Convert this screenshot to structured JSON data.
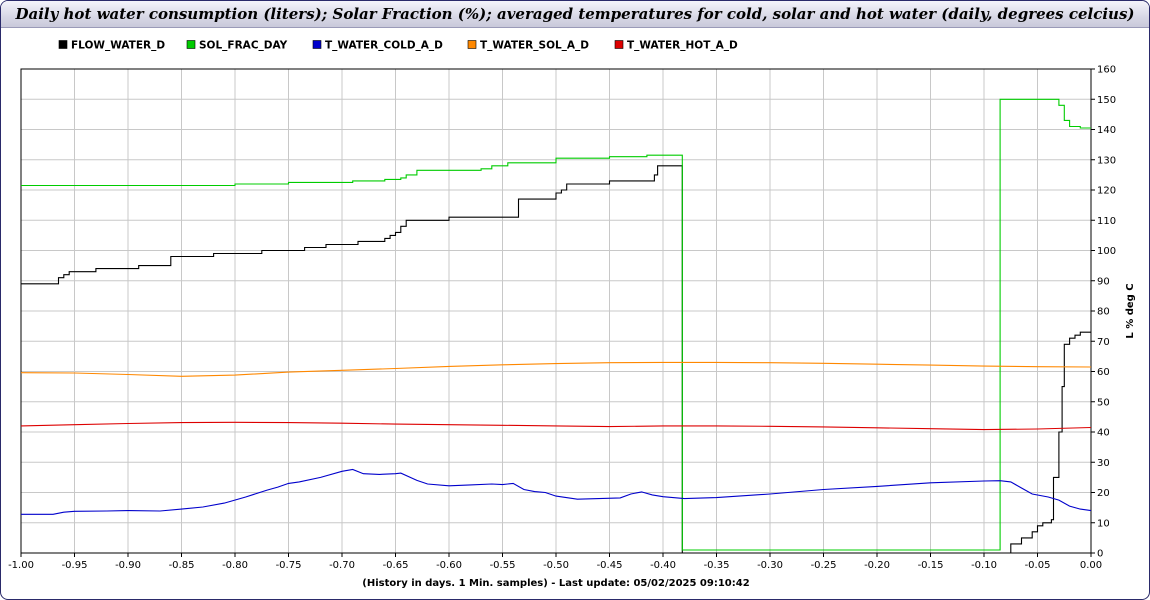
{
  "window": {
    "title": "Daily hot water consumption (liters); Solar Fraction (%); averaged temperatures for cold, solar and hot water (daily, degrees celcius)"
  },
  "chart_data": {
    "type": "line",
    "title": "Daily hot water consumption (liters); Solar Fraction (%); averaged temperatures for cold, solar and hot water (daily, degrees celcius)",
    "xlabel": "(History in days. 1 Min. samples) - Last update: 05/02/2025 09:10:42",
    "ylabel": "L % deg C",
    "xlim": [
      -1.0,
      0.0
    ],
    "ylim": [
      0,
      160
    ],
    "x_ticks": [
      -1.0,
      -0.95,
      -0.9,
      -0.85,
      -0.8,
      -0.75,
      -0.7,
      -0.65,
      -0.6,
      -0.55,
      -0.5,
      -0.45,
      -0.4,
      -0.35,
      -0.3,
      -0.25,
      -0.2,
      -0.15,
      -0.1,
      -0.05,
      0.0
    ],
    "x_tick_labels": [
      "-1.00",
      "-0.95",
      "-0.90",
      "-0.85",
      "-0.80",
      "-0.75",
      "-0.70",
      "-0.65",
      "-0.60",
      "-0.55",
      "-0.50",
      "-0.45",
      "-0.40",
      "-0.35",
      "-0.30",
      "-0.25",
      "-0.20",
      "-0.15",
      "-0.10",
      "-0.05",
      "0.00"
    ],
    "y_ticks": [
      0,
      10,
      20,
      30,
      40,
      50,
      60,
      70,
      80,
      90,
      100,
      110,
      120,
      130,
      140,
      150,
      160
    ],
    "y_axis_side": "right",
    "grid": true,
    "legend_position": "top-left",
    "series": [
      {
        "name": "FLOW_WATER_D",
        "color": "#000000",
        "step": true,
        "points": [
          [
            -1.0,
            89
          ],
          [
            -0.97,
            89
          ],
          [
            -0.965,
            91
          ],
          [
            -0.96,
            92
          ],
          [
            -0.955,
            93
          ],
          [
            -0.935,
            93
          ],
          [
            -0.93,
            94
          ],
          [
            -0.9,
            94
          ],
          [
            -0.89,
            95
          ],
          [
            -0.865,
            95
          ],
          [
            -0.86,
            98
          ],
          [
            -0.825,
            98
          ],
          [
            -0.82,
            99
          ],
          [
            -0.78,
            99
          ],
          [
            -0.775,
            100
          ],
          [
            -0.74,
            100
          ],
          [
            -0.735,
            101
          ],
          [
            -0.72,
            101
          ],
          [
            -0.715,
            102
          ],
          [
            -0.69,
            102
          ],
          [
            -0.685,
            103
          ],
          [
            -0.665,
            103
          ],
          [
            -0.66,
            104
          ],
          [
            -0.655,
            105
          ],
          [
            -0.65,
            106
          ],
          [
            -0.645,
            108
          ],
          [
            -0.64,
            110
          ],
          [
            -0.605,
            110
          ],
          [
            -0.6,
            111
          ],
          [
            -0.54,
            111
          ],
          [
            -0.535,
            117
          ],
          [
            -0.505,
            117
          ],
          [
            -0.5,
            119
          ],
          [
            -0.495,
            120
          ],
          [
            -0.49,
            122
          ],
          [
            -0.455,
            122
          ],
          [
            -0.45,
            123
          ],
          [
            -0.41,
            123
          ],
          [
            -0.408,
            125
          ],
          [
            -0.405,
            128
          ],
          [
            -0.383,
            128
          ],
          [
            -0.382,
            0
          ],
          [
            -0.08,
            0
          ],
          [
            -0.075,
            3
          ],
          [
            -0.065,
            5
          ],
          [
            -0.055,
            7
          ],
          [
            -0.05,
            9
          ],
          [
            -0.045,
            10
          ],
          [
            -0.04,
            10
          ],
          [
            -0.037,
            11
          ],
          [
            -0.035,
            25
          ],
          [
            -0.03,
            40
          ],
          [
            -0.027,
            55
          ],
          [
            -0.025,
            69
          ],
          [
            -0.02,
            71
          ],
          [
            -0.015,
            72
          ],
          [
            -0.01,
            73
          ],
          [
            0.0,
            73
          ]
        ]
      },
      {
        "name": "SOL_FRAC_DAY",
        "color": "#00cc00",
        "step": true,
        "points": [
          [
            -1.0,
            121.5
          ],
          [
            -0.94,
            121.5
          ],
          [
            -0.935,
            121.5
          ],
          [
            -0.88,
            121.5
          ],
          [
            -0.8,
            122
          ],
          [
            -0.75,
            122.5
          ],
          [
            -0.69,
            123
          ],
          [
            -0.66,
            123.5
          ],
          [
            -0.645,
            124
          ],
          [
            -0.64,
            125
          ],
          [
            -0.63,
            126.5
          ],
          [
            -0.59,
            126.5
          ],
          [
            -0.57,
            127
          ],
          [
            -0.56,
            128
          ],
          [
            -0.545,
            129
          ],
          [
            -0.5,
            130.5
          ],
          [
            -0.45,
            131
          ],
          [
            -0.42,
            131
          ],
          [
            -0.415,
            131.5
          ],
          [
            -0.383,
            131.5
          ],
          [
            -0.382,
            1
          ],
          [
            -0.086,
            1
          ],
          [
            -0.085,
            150
          ],
          [
            -0.035,
            150
          ],
          [
            -0.03,
            148
          ],
          [
            -0.025,
            143
          ],
          [
            -0.02,
            141
          ],
          [
            -0.01,
            140.5
          ],
          [
            0.0,
            140.5
          ]
        ]
      },
      {
        "name": "T_WATER_COLD_A_D",
        "color": "#0000cc",
        "step": false,
        "points": [
          [
            -1.0,
            12.8
          ],
          [
            -0.97,
            12.8
          ],
          [
            -0.96,
            13.5
          ],
          [
            -0.95,
            13.8
          ],
          [
            -0.92,
            13.9
          ],
          [
            -0.9,
            14.0
          ],
          [
            -0.87,
            13.9
          ],
          [
            -0.85,
            14.5
          ],
          [
            -0.83,
            15.2
          ],
          [
            -0.81,
            16.5
          ],
          [
            -0.79,
            18.5
          ],
          [
            -0.77,
            20.8
          ],
          [
            -0.76,
            21.8
          ],
          [
            -0.75,
            23.0
          ],
          [
            -0.74,
            23.5
          ],
          [
            -0.72,
            25.0
          ],
          [
            -0.7,
            27.0
          ],
          [
            -0.69,
            27.6
          ],
          [
            -0.68,
            26.2
          ],
          [
            -0.665,
            26.0
          ],
          [
            -0.65,
            26.2
          ],
          [
            -0.645,
            26.4
          ],
          [
            -0.63,
            24.0
          ],
          [
            -0.62,
            22.8
          ],
          [
            -0.6,
            22.2
          ],
          [
            -0.58,
            22.5
          ],
          [
            -0.56,
            22.8
          ],
          [
            -0.55,
            22.6
          ],
          [
            -0.54,
            23.0
          ],
          [
            -0.53,
            21.0
          ],
          [
            -0.52,
            20.3
          ],
          [
            -0.51,
            20.0
          ],
          [
            -0.5,
            18.8
          ],
          [
            -0.48,
            17.8
          ],
          [
            -0.46,
            18.0
          ],
          [
            -0.44,
            18.2
          ],
          [
            -0.43,
            19.5
          ],
          [
            -0.42,
            20.2
          ],
          [
            -0.41,
            19.2
          ],
          [
            -0.4,
            18.6
          ],
          [
            -0.38,
            18.0
          ],
          [
            -0.35,
            18.3
          ],
          [
            -0.3,
            19.5
          ],
          [
            -0.25,
            21.0
          ],
          [
            -0.2,
            22.0
          ],
          [
            -0.15,
            23.2
          ],
          [
            -0.1,
            23.8
          ],
          [
            -0.085,
            23.9
          ],
          [
            -0.075,
            23.5
          ],
          [
            -0.065,
            21.5
          ],
          [
            -0.055,
            19.5
          ],
          [
            -0.04,
            18.5
          ],
          [
            -0.03,
            17.5
          ],
          [
            -0.02,
            15.5
          ],
          [
            -0.01,
            14.5
          ],
          [
            0.0,
            14.0
          ]
        ]
      },
      {
        "name": "T_WATER_SOL_A_D",
        "color": "#ff8800",
        "step": false,
        "points": [
          [
            -1.0,
            59.6
          ],
          [
            -0.95,
            59.5
          ],
          [
            -0.9,
            59.0
          ],
          [
            -0.85,
            58.4
          ],
          [
            -0.8,
            58.8
          ],
          [
            -0.75,
            59.8
          ],
          [
            -0.7,
            60.4
          ],
          [
            -0.65,
            61.0
          ],
          [
            -0.6,
            61.7
          ],
          [
            -0.55,
            62.2
          ],
          [
            -0.5,
            62.6
          ],
          [
            -0.45,
            62.9
          ],
          [
            -0.4,
            63.0
          ],
          [
            -0.35,
            63.0
          ],
          [
            -0.3,
            62.9
          ],
          [
            -0.25,
            62.7
          ],
          [
            -0.2,
            62.4
          ],
          [
            -0.15,
            62.1
          ],
          [
            -0.1,
            61.8
          ],
          [
            -0.05,
            61.6
          ],
          [
            0.0,
            61.5
          ]
        ]
      },
      {
        "name": "T_WATER_HOT_A_D",
        "color": "#dd0000",
        "step": false,
        "points": [
          [
            -1.0,
            42.0
          ],
          [
            -0.95,
            42.4
          ],
          [
            -0.9,
            42.8
          ],
          [
            -0.85,
            43.1
          ],
          [
            -0.8,
            43.2
          ],
          [
            -0.75,
            43.1
          ],
          [
            -0.7,
            42.9
          ],
          [
            -0.65,
            42.6
          ],
          [
            -0.6,
            42.4
          ],
          [
            -0.55,
            42.2
          ],
          [
            -0.5,
            42.0
          ],
          [
            -0.45,
            41.8
          ],
          [
            -0.4,
            42.0
          ],
          [
            -0.35,
            42.0
          ],
          [
            -0.3,
            41.9
          ],
          [
            -0.25,
            41.7
          ],
          [
            -0.2,
            41.4
          ],
          [
            -0.15,
            41.1
          ],
          [
            -0.1,
            40.8
          ],
          [
            -0.05,
            41.0
          ],
          [
            0.0,
            41.5
          ]
        ]
      }
    ]
  }
}
